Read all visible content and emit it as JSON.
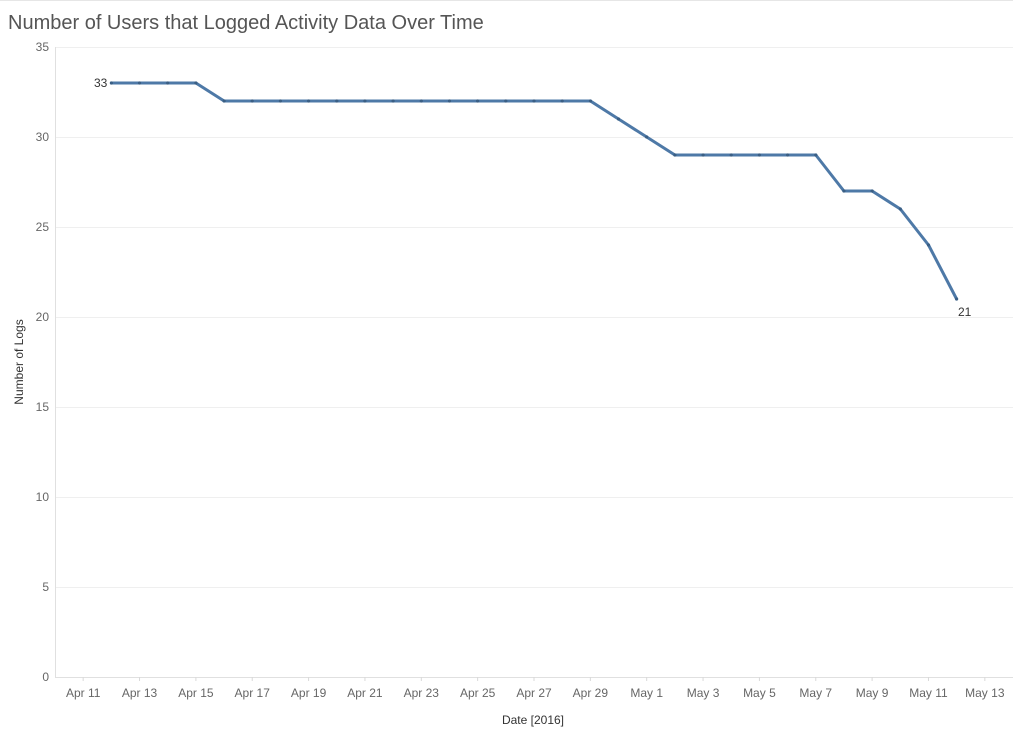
{
  "chart_data": {
    "type": "line",
    "title": "Number of Users that Logged Activity Data Over Time",
    "xlabel": "Date [2016]",
    "ylabel": "Number of Logs",
    "ylim": [
      0,
      35
    ],
    "y_ticks": [
      0,
      5,
      10,
      15,
      20,
      25,
      30,
      35
    ],
    "x_range": [
      "2016-04-10",
      "2016-05-14"
    ],
    "x_ticks": [
      {
        "date": "2016-04-11",
        "label": "Apr 11"
      },
      {
        "date": "2016-04-13",
        "label": "Apr 13"
      },
      {
        "date": "2016-04-15",
        "label": "Apr 15"
      },
      {
        "date": "2016-04-17",
        "label": "Apr 17"
      },
      {
        "date": "2016-04-19",
        "label": "Apr 19"
      },
      {
        "date": "2016-04-21",
        "label": "Apr 21"
      },
      {
        "date": "2016-04-23",
        "label": "Apr 23"
      },
      {
        "date": "2016-04-25",
        "label": "Apr 25"
      },
      {
        "date": "2016-04-27",
        "label": "Apr 27"
      },
      {
        "date": "2016-04-29",
        "label": "Apr 29"
      },
      {
        "date": "2016-05-01",
        "label": "May 1"
      },
      {
        "date": "2016-05-03",
        "label": "May 3"
      },
      {
        "date": "2016-05-05",
        "label": "May 5"
      },
      {
        "date": "2016-05-07",
        "label": "May 7"
      },
      {
        "date": "2016-05-09",
        "label": "May 9"
      },
      {
        "date": "2016-05-11",
        "label": "May 11"
      },
      {
        "date": "2016-05-13",
        "label": "May 13"
      }
    ],
    "grid": true,
    "series": [
      {
        "name": "Number of Logs",
        "color": "#4e79a7",
        "points": [
          {
            "x": "2016-04-12",
            "y": 33
          },
          {
            "x": "2016-04-13",
            "y": 33
          },
          {
            "x": "2016-04-14",
            "y": 33
          },
          {
            "x": "2016-04-15",
            "y": 33
          },
          {
            "x": "2016-04-16",
            "y": 32
          },
          {
            "x": "2016-04-17",
            "y": 32
          },
          {
            "x": "2016-04-18",
            "y": 32
          },
          {
            "x": "2016-04-19",
            "y": 32
          },
          {
            "x": "2016-04-20",
            "y": 32
          },
          {
            "x": "2016-04-21",
            "y": 32
          },
          {
            "x": "2016-04-22",
            "y": 32
          },
          {
            "x": "2016-04-23",
            "y": 32
          },
          {
            "x": "2016-04-24",
            "y": 32
          },
          {
            "x": "2016-04-25",
            "y": 32
          },
          {
            "x": "2016-04-26",
            "y": 32
          },
          {
            "x": "2016-04-27",
            "y": 32
          },
          {
            "x": "2016-04-28",
            "y": 32
          },
          {
            "x": "2016-04-29",
            "y": 32
          },
          {
            "x": "2016-04-30",
            "y": 31
          },
          {
            "x": "2016-05-01",
            "y": 30
          },
          {
            "x": "2016-05-02",
            "y": 29
          },
          {
            "x": "2016-05-03",
            "y": 29
          },
          {
            "x": "2016-05-04",
            "y": 29
          },
          {
            "x": "2016-05-05",
            "y": 29
          },
          {
            "x": "2016-05-06",
            "y": 29
          },
          {
            "x": "2016-05-07",
            "y": 29
          },
          {
            "x": "2016-05-08",
            "y": 27
          },
          {
            "x": "2016-05-09",
            "y": 27
          },
          {
            "x": "2016-05-10",
            "y": 26
          },
          {
            "x": "2016-05-11",
            "y": 24
          },
          {
            "x": "2016-05-12",
            "y": 21
          }
        ]
      }
    ],
    "annotations": [
      {
        "x": "2016-04-12",
        "y": 33,
        "text": "33",
        "side": "left"
      },
      {
        "x": "2016-05-12",
        "y": 21,
        "text": "21",
        "side": "below-right"
      }
    ]
  }
}
